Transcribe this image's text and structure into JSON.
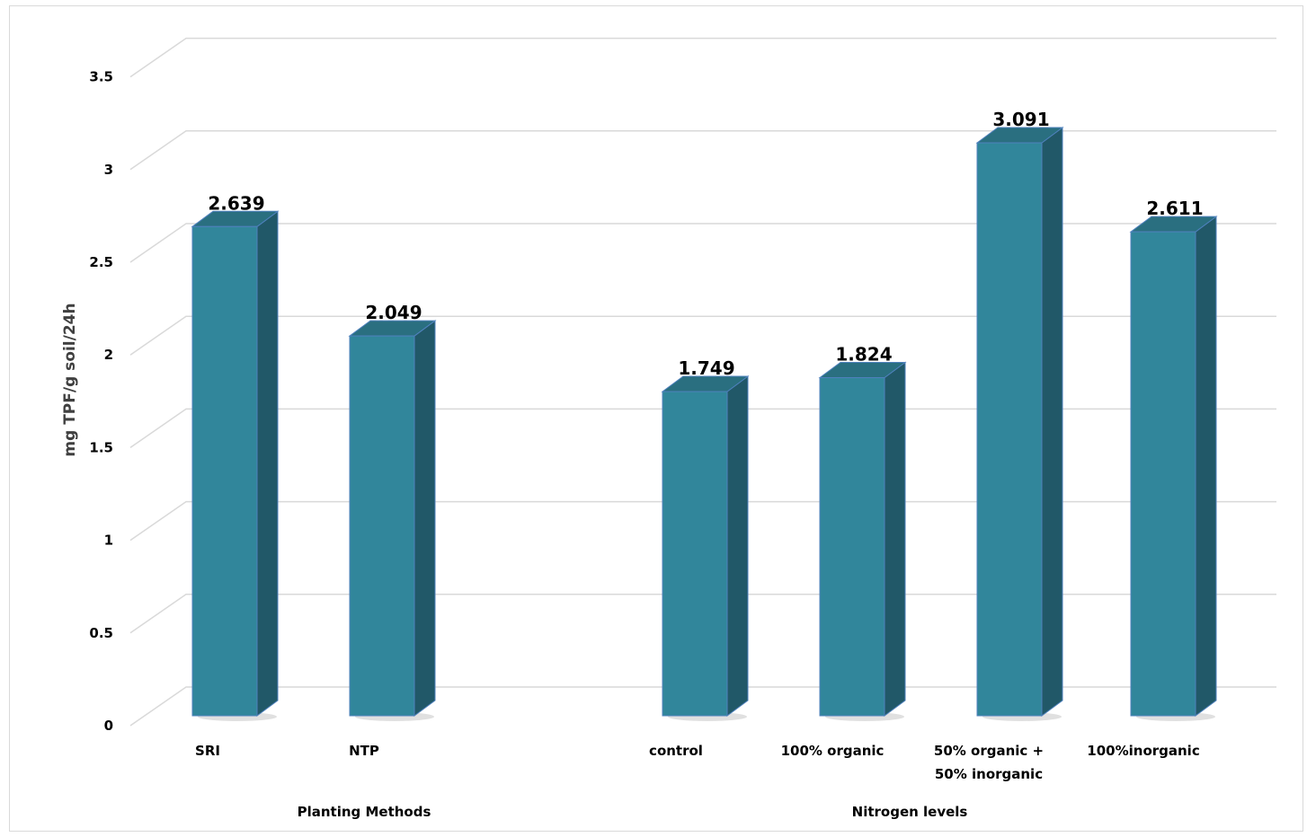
{
  "chart_data": {
    "type": "bar",
    "title": "",
    "ylabel": "mg TPF/g soil/24h",
    "ylim": [
      0,
      3.5
    ],
    "yticks": [
      "0",
      "0.5",
      "1",
      "1.5",
      "2",
      "2.5",
      "3",
      "3.5"
    ],
    "grid": true,
    "legend": "none",
    "groups": [
      {
        "label": "Planting Methods",
        "categories": [
          "SRI",
          "NTP"
        ],
        "values": [
          2.639,
          2.049
        ],
        "value_labels": [
          "2.639",
          "2.049"
        ]
      },
      {
        "label": "Nitrogen levels",
        "categories": [
          "control",
          "100% organic",
          "50% organic + 50% inorganic",
          "100%inorganic"
        ],
        "values": [
          1.749,
          1.824,
          3.091,
          2.611
        ],
        "value_labels": [
          "1.749",
          "1.824",
          "3.091",
          "2.611"
        ]
      }
    ],
    "colors": {
      "bar_front": "#31869b",
      "bar_side": "#215868",
      "bar_top": "#2a6f80",
      "bar_edge": "#4f81bd",
      "gridline": "#d9d9d9"
    }
  }
}
